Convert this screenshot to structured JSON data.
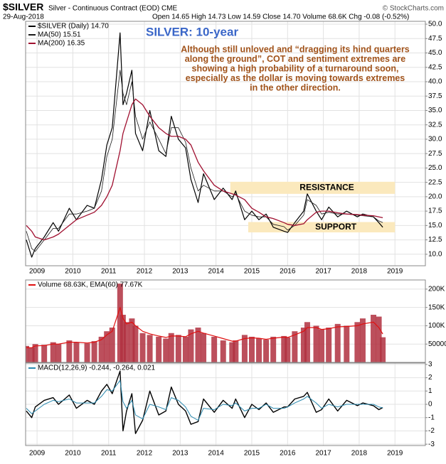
{
  "header": {
    "symbol": "$SILVER",
    "desc": "Silver - Continuous Contract (EOD) CME",
    "date": "29-Aug-2018",
    "quote": "Open 14.65 High 14.73 Low 14.59 Close 14.70 Volume 68.6K Chg -0.08 (-0.52%)",
    "credit": "© StockCharts.com"
  },
  "chart_data": [
    {
      "type": "line",
      "title": "SILVER: 10-year",
      "annotation": [
        "Although still unloved and “dragging its hind quarters",
        "along the ground”, COT and sentiment extremes are",
        "showing a high probability of a turnaround soon,",
        "especially as the dollar is moving towards extremes",
        "in the other direction."
      ],
      "x": [
        2008.7,
        2008.85,
        2008.95,
        2009.2,
        2009.45,
        2009.6,
        2009.9,
        2010.1,
        2010.4,
        2010.6,
        2010.8,
        2010.95,
        2011.1,
        2011.32,
        2011.4,
        2011.5,
        2011.65,
        2011.75,
        2011.95,
        2012.15,
        2012.4,
        2012.6,
        2012.75,
        2012.95,
        2013.15,
        2013.3,
        2013.5,
        2013.65,
        2013.95,
        2014.2,
        2014.45,
        2014.55,
        2014.8,
        2015.0,
        2015.2,
        2015.4,
        2015.6,
        2015.9,
        2016.0,
        2016.2,
        2016.45,
        2016.55,
        2016.8,
        2016.95,
        2017.15,
        2017.4,
        2017.65,
        2017.95,
        2018.1,
        2018.4,
        2018.55,
        2018.66
      ],
      "series": [
        {
          "name": "$SILVER (Daily) 14.70",
          "color": "#000000",
          "width": 1.2,
          "values": [
            12.5,
            9.5,
            11,
            13,
            15.5,
            14,
            18,
            16,
            18.5,
            18,
            23,
            29,
            32,
            48.5,
            36,
            38,
            42,
            31,
            28,
            35,
            28,
            27,
            34,
            30,
            28.5,
            23,
            19,
            24,
            19.5,
            21.5,
            19.5,
            21,
            16,
            17.5,
            16,
            17,
            14.7,
            14,
            13.8,
            15.5,
            17.5,
            20.5,
            17.5,
            16,
            18.2,
            16.5,
            17.5,
            16.5,
            17,
            16.5,
            15.5,
            14.7
          ]
        },
        {
          "name": "MA(50) 15.51",
          "color": "#1a1a1a",
          "width": 0.8,
          "values": [
            14,
            11,
            10.5,
            12.5,
            14.5,
            14.5,
            17,
            17,
            17.5,
            18,
            21,
            27,
            30,
            42,
            38,
            36,
            40,
            34,
            30,
            33,
            30,
            27.5,
            32,
            32,
            29.5,
            25,
            21,
            22,
            21,
            21,
            20,
            20.5,
            17.5,
            16.8,
            16.5,
            16.5,
            15.2,
            14.8,
            14.2,
            15,
            16.8,
            19.5,
            18.5,
            17,
            17.3,
            17,
            17,
            16.8,
            16.7,
            16.5,
            15.8,
            15.51
          ]
        },
        {
          "name": "MA(200) 16.35",
          "color": "#a01030",
          "width": 1.3,
          "values": [
            15,
            14,
            13,
            12.5,
            13,
            13.5,
            15,
            16,
            16.8,
            17.3,
            18.5,
            20,
            22,
            28,
            31,
            33,
            36,
            37,
            36,
            34,
            32,
            31,
            30.5,
            30.5,
            30,
            29,
            26,
            24.5,
            22,
            21,
            20.5,
            20.3,
            19.5,
            18,
            17.3,
            16.5,
            16.2,
            15.5,
            15.2,
            15,
            15.3,
            16,
            17.3,
            17.5,
            17.5,
            17.2,
            17,
            16.9,
            16.8,
            16.7,
            16.5,
            16.35
          ]
        }
      ],
      "zones": [
        {
          "label": "RESISTANCE",
          "from": 2014.4,
          "to": 2019.0,
          "ylim": [
            20.5,
            22.6
          ],
          "color": "#fbe9bd"
        },
        {
          "label": "SUPPORT",
          "from": 2014.9,
          "to": 2019.0,
          "ylim": [
            13.8,
            15.6
          ],
          "color": "#fbe9bd"
        }
      ],
      "xlim": [
        2008.68,
        2019.85
      ],
      "xticks": [
        2009,
        2010,
        2011,
        2012,
        2013,
        2014,
        2015,
        2016,
        2017,
        2018,
        2019
      ],
      "ylim": [
        8,
        50.5
      ],
      "yticks": [
        {
          "value": 10,
          "label": "10.0"
        },
        {
          "value": 12.5,
          "label": "12.5"
        },
        {
          "value": 15,
          "label": "15.0"
        },
        {
          "value": 17.5,
          "label": "17.5"
        },
        {
          "value": 20,
          "label": "20.0"
        },
        {
          "value": 22.5,
          "label": "22.5"
        },
        {
          "value": 25,
          "label": "25.0"
        },
        {
          "value": 27.5,
          "label": "27.5"
        },
        {
          "value": 30,
          "label": "30.0"
        },
        {
          "value": 32.5,
          "label": "32.5"
        },
        {
          "value": 35,
          "label": "35.0"
        },
        {
          "value": 37.5,
          "label": "37.5"
        },
        {
          "value": 40,
          "label": "40.0"
        },
        {
          "value": 42.5,
          "label": "42.5"
        },
        {
          "value": 45,
          "label": "45.0"
        },
        {
          "value": 47.5,
          "label": "47.5"
        },
        {
          "value": 50,
          "label": "50.0"
        }
      ],
      "grid": true
    },
    {
      "type": "bar",
      "legend": "Volume 68.63K, EMA(60) 77.67K",
      "x": [
        2008.7,
        2008.85,
        2008.95,
        2009.2,
        2009.45,
        2009.6,
        2009.9,
        2010.1,
        2010.4,
        2010.6,
        2010.8,
        2010.95,
        2011.1,
        2011.32,
        2011.4,
        2011.5,
        2011.65,
        2011.75,
        2011.95,
        2012.15,
        2012.4,
        2012.6,
        2012.75,
        2012.95,
        2013.15,
        2013.3,
        2013.5,
        2013.65,
        2013.95,
        2014.2,
        2014.45,
        2014.55,
        2014.8,
        2015.0,
        2015.2,
        2015.4,
        2015.6,
        2015.9,
        2016.0,
        2016.2,
        2016.45,
        2016.55,
        2016.8,
        2016.95,
        2017.15,
        2017.4,
        2017.65,
        2017.95,
        2018.1,
        2018.4,
        2018.55,
        2018.66
      ],
      "series": [
        {
          "kind": "bar",
          "color": "#b03040",
          "values": [
            45000,
            40000,
            50000,
            48000,
            55000,
            50000,
            60000,
            55000,
            52000,
            58000,
            70000,
            85000,
            95000,
            215000,
            130000,
            110000,
            120000,
            100000,
            80000,
            75000,
            70000,
            65000,
            80000,
            75000,
            70000,
            90000,
            95000,
            80000,
            70000,
            60000,
            55000,
            60000,
            75000,
            70000,
            65000,
            62000,
            70000,
            72000,
            68000,
            85000,
            95000,
            110000,
            100000,
            90000,
            95000,
            105000,
            100000,
            110000,
            120000,
            130000,
            125000,
            68630
          ]
        },
        {
          "kind": "line",
          "color": "#e01010",
          "values": [
            40000,
            40000,
            45000,
            46000,
            50000,
            50000,
            55000,
            55000,
            53000,
            55000,
            62000,
            75000,
            85000,
            150000,
            120000,
            105000,
            110000,
            100000,
            85000,
            78000,
            72000,
            68000,
            72000,
            72000,
            70000,
            78000,
            85000,
            80000,
            72000,
            65000,
            58000,
            58000,
            65000,
            67000,
            66000,
            63000,
            66000,
            69000,
            68000,
            75000,
            85000,
            95000,
            95000,
            90000,
            92000,
            97000,
            98000,
            100000,
            105000,
            110000,
            95000,
            77670
          ]
        }
      ],
      "xlim": [
        2008.68,
        2019.85
      ],
      "ylim": [
        0,
        225000
      ],
      "yticks": [
        50000,
        {
          "value": 100000,
          "label": "100K"
        },
        {
          "value": 150000,
          "label": "150K"
        },
        {
          "value": 200000,
          "label": "200K"
        }
      ],
      "grid": true
    },
    {
      "type": "line",
      "legend": "MACD(12,26,9) -0.244, -0.264, 0.021",
      "x": [
        2008.7,
        2008.85,
        2008.95,
        2009.2,
        2009.45,
        2009.6,
        2009.9,
        2010.1,
        2010.4,
        2010.6,
        2010.8,
        2010.95,
        2011.1,
        2011.32,
        2011.4,
        2011.5,
        2011.65,
        2011.75,
        2011.95,
        2012.15,
        2012.4,
        2012.6,
        2012.75,
        2012.95,
        2013.15,
        2013.3,
        2013.5,
        2013.65,
        2013.95,
        2014.2,
        2014.45,
        2014.55,
        2014.8,
        2015.0,
        2015.2,
        2015.4,
        2015.6,
        2015.9,
        2016.0,
        2016.2,
        2016.45,
        2016.55,
        2016.8,
        2016.95,
        2017.15,
        2017.4,
        2017.65,
        2017.95,
        2018.1,
        2018.4,
        2018.55,
        2018.66
      ],
      "series": [
        {
          "color": "#000000",
          "width": 1.4,
          "values": [
            -0.5,
            -1,
            -0.2,
            0.3,
            0.5,
            0,
            0.7,
            -0.3,
            0.3,
            0,
            1,
            1.5,
            0.8,
            2.5,
            -2,
            -0.5,
            0.8,
            -2.2,
            -1.2,
            1,
            -0.8,
            -0.5,
            1.3,
            0,
            -0.5,
            -1.5,
            -1.3,
            0.4,
            -0.6,
            0.3,
            -0.3,
            0.4,
            -1,
            0,
            -0.4,
            0.1,
            -0.6,
            -0.2,
            -0.2,
            0.4,
            0.6,
            0.9,
            -0.6,
            -0.4,
            0.4,
            -0.5,
            0.3,
            -0.1,
            0.1,
            -0.1,
            -0.4,
            -0.244
          ]
        },
        {
          "color": "#2a8ab0",
          "width": 1,
          "values": [
            -0.3,
            -0.7,
            -0.5,
            0,
            0.3,
            0.2,
            0.4,
            0.1,
            0.1,
            0.1,
            0.6,
            1.1,
            1,
            1.8,
            0.2,
            -0.3,
            0.3,
            -0.8,
            -1.1,
            0,
            -0.2,
            -0.4,
            0.5,
            0.3,
            -0.2,
            -0.9,
            -1.2,
            -0.3,
            -0.4,
            0,
            -0.1,
            0.1,
            -0.5,
            -0.3,
            -0.3,
            0,
            -0.3,
            -0.3,
            -0.2,
            0.1,
            0.4,
            0.6,
            0.1,
            -0.3,
            0,
            -0.2,
            0,
            0,
            0,
            0,
            -0.2,
            -0.264
          ]
        }
      ],
      "xlim": [
        2008.68,
        2019.85
      ],
      "xticks": [
        2009,
        2010,
        2011,
        2012,
        2013,
        2014,
        2015,
        2016,
        2017,
        2018,
        2019
      ],
      "ylim": [
        -3.1,
        3.1
      ],
      "yticks": [
        -3,
        -2,
        -1,
        0,
        1,
        2,
        3
      ],
      "grid": true
    }
  ]
}
